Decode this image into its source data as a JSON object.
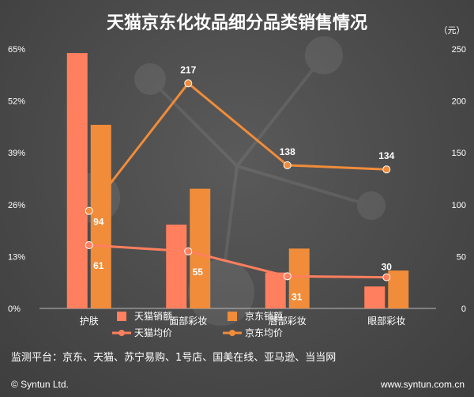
{
  "chart_data": {
    "type": "bar",
    "title": "天猫京东化妆品细分品类销售情况",
    "categories": [
      "护肤",
      "面部彩妆",
      "唇部彩妆",
      "眼部彩妆"
    ],
    "series": [
      {
        "name": "天猫销额",
        "kind": "bar",
        "axis": "left",
        "color": "#ff7f5e",
        "values": [
          64,
          21,
          9,
          5.5
        ]
      },
      {
        "name": "京东销额",
        "kind": "bar",
        "axis": "left",
        "color": "#f08c3a",
        "values": [
          46,
          30,
          15,
          9.5
        ]
      },
      {
        "name": "天猫均价",
        "kind": "line",
        "axis": "right",
        "color": "#ff7f5e",
        "values": [
          61,
          55,
          31,
          30
        ]
      },
      {
        "name": "京东均价",
        "kind": "line",
        "axis": "right",
        "color": "#f08c3a",
        "values": [
          94,
          217,
          138,
          134
        ]
      }
    ],
    "y_left": {
      "range": [
        0,
        65
      ],
      "ticks": [
        "0%",
        "13%",
        "26%",
        "39%",
        "52%",
        "65%"
      ]
    },
    "y_right": {
      "range": [
        0,
        250
      ],
      "ticks": [
        "0",
        "50",
        "100",
        "150",
        "200",
        "250"
      ],
      "unit": "（元）"
    },
    "legend_position": "bottom",
    "grid": false
  },
  "note": "监测平台：京东、天猫、苏宁易购、1号店、国美在线、亚马逊、当当网",
  "footer": {
    "left": "© Syntun Ltd.",
    "right": "www.syntun.com.cn"
  }
}
